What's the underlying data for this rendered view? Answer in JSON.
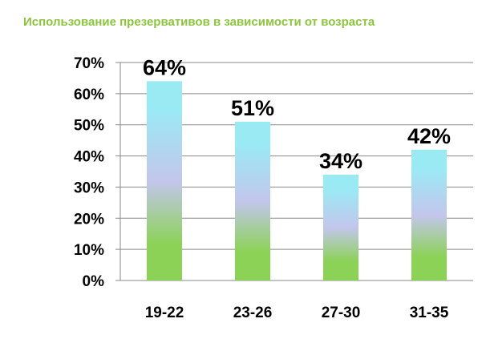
{
  "chart_data": {
    "type": "bar",
    "title": "Использование презервативов в зависимости от возраста",
    "categories": [
      "19-22",
      "23-26",
      "27-30",
      "31-35"
    ],
    "values": [
      64,
      51,
      34,
      42
    ],
    "data_labels": [
      "64%",
      "51%",
      "34%",
      "42%"
    ],
    "y_ticks": [
      0,
      10,
      20,
      30,
      40,
      50,
      60,
      70
    ],
    "y_tick_labels": [
      "0%",
      "10%",
      "20%",
      "30%",
      "40%",
      "50%",
      "60%",
      "70%"
    ],
    "ylim": [
      0,
      70
    ],
    "grid": true,
    "legend": "none",
    "colors": {
      "title": "#8cc63e",
      "bar_top": "#9aeaf4",
      "bar_mid": "#c3c6ec",
      "bar_bottom": "#8cd257",
      "grid": "#8a8a8a",
      "axis": "#8a8a8a"
    }
  }
}
